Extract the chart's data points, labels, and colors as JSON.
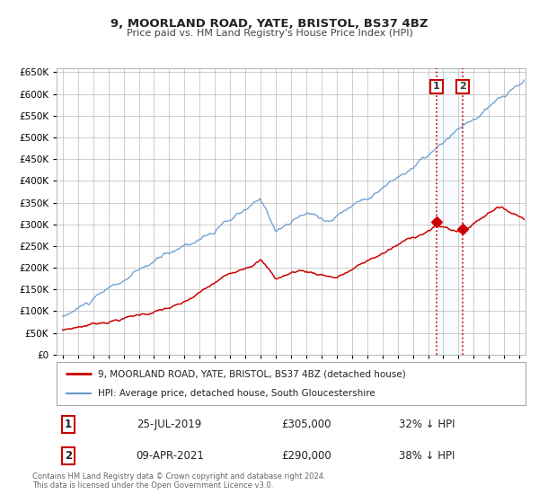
{
  "title": "9, MOORLAND ROAD, YATE, BRISTOL, BS37 4BZ",
  "subtitle": "Price paid vs. HM Land Registry's House Price Index (HPI)",
  "legend_line1": "9, MOORLAND ROAD, YATE, BRISTOL, BS37 4BZ (detached house)",
  "legend_line2": "HPI: Average price, detached house, South Gloucestershire",
  "annotation1_date": "25-JUL-2019",
  "annotation1_price": "£305,000",
  "annotation1_pct": "32% ↓ HPI",
  "annotation2_date": "09-APR-2021",
  "annotation2_price": "£290,000",
  "annotation2_pct": "38% ↓ HPI",
  "footer1": "Contains HM Land Registry data © Crown copyright and database right 2024.",
  "footer2": "This data is licensed under the Open Government Licence v3.0.",
  "red_color": "#cc0000",
  "blue_color": "#6699cc",
  "highlight_bg": "#ddeeff",
  "grid_color": "#bbbbbb",
  "ylim": [
    0,
    660000
  ],
  "yticks": [
    0,
    50000,
    100000,
    150000,
    200000,
    250000,
    300000,
    350000,
    400000,
    450000,
    500000,
    550000,
    600000,
    650000
  ],
  "marker1_x": 2019.56,
  "marker1_y": 305000,
  "marker2_x": 2021.27,
  "marker2_y": 290000,
  "vline1_x": 2019.56,
  "vline2_x": 2021.27,
  "xlim_left": 1994.6,
  "xlim_right": 2025.4
}
